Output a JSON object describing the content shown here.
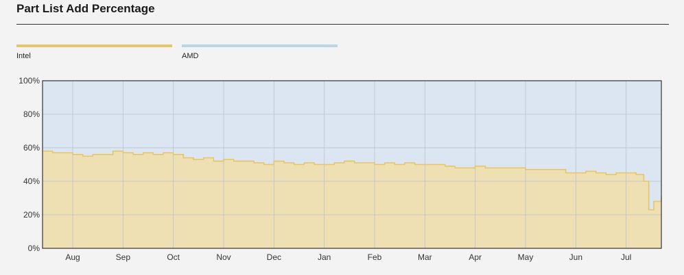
{
  "title": "Part List Add Percentage",
  "chart_data": {
    "type": "area",
    "stacked": true,
    "percent": true,
    "title": "Part List Add Percentage",
    "legend_position": "top-left",
    "grid": true,
    "xlabel": "",
    "ylabel": "",
    "ylim": [
      0,
      100
    ],
    "xlim": [
      0,
      12.3
    ],
    "x_tick_labels": [
      "Aug",
      "Sep",
      "Oct",
      "Nov",
      "Dec",
      "Jan",
      "Feb",
      "Mar",
      "Apr",
      "May",
      "Jun",
      "Jul"
    ],
    "x_tick_values": [
      0.6,
      1.6,
      2.6,
      3.6,
      4.6,
      5.6,
      6.6,
      7.6,
      8.6,
      9.6,
      10.6,
      11.6
    ],
    "y_tick_labels": [
      "0%",
      "20%",
      "40%",
      "60%",
      "80%",
      "100%"
    ],
    "y_tick_values": [
      0,
      20,
      40,
      60,
      80,
      100
    ],
    "series": [
      {
        "name": "Intel",
        "color": "#e6c66a",
        "fill": "#efe0b3",
        "x": [
          0,
          0.2,
          0.4,
          0.6,
          0.8,
          1.0,
          1.2,
          1.4,
          1.6,
          1.8,
          2.0,
          2.2,
          2.4,
          2.6,
          2.8,
          3.0,
          3.2,
          3.4,
          3.6,
          3.8,
          4.0,
          4.2,
          4.4,
          4.6,
          4.8,
          5.0,
          5.2,
          5.4,
          5.6,
          5.8,
          6.0,
          6.2,
          6.4,
          6.6,
          6.8,
          7.0,
          7.2,
          7.4,
          7.6,
          7.8,
          8.0,
          8.2,
          8.4,
          8.6,
          8.8,
          9.0,
          9.2,
          9.4,
          9.6,
          9.8,
          10.0,
          10.2,
          10.4,
          10.6,
          10.8,
          11.0,
          11.2,
          11.4,
          11.6,
          11.8,
          11.95,
          12.05,
          12.15,
          12.3
        ],
        "values": [
          58,
          57,
          57,
          56,
          55,
          56,
          56,
          58,
          57,
          56,
          57,
          56,
          57,
          56,
          54,
          53,
          54,
          52,
          53,
          52,
          52,
          51,
          50,
          52,
          51,
          50,
          51,
          50,
          50,
          51,
          52,
          51,
          51,
          50,
          51,
          50,
          51,
          50,
          50,
          50,
          49,
          48,
          48,
          49,
          48,
          48,
          48,
          48,
          47,
          47,
          47,
          47,
          45,
          45,
          46,
          45,
          44,
          45,
          45,
          44,
          40,
          23,
          28,
          31
        ]
      },
      {
        "name": "AMD",
        "color": "#b8d6e6",
        "fill": "#dce6f2",
        "values_note": "remainder to 100%"
      }
    ]
  }
}
